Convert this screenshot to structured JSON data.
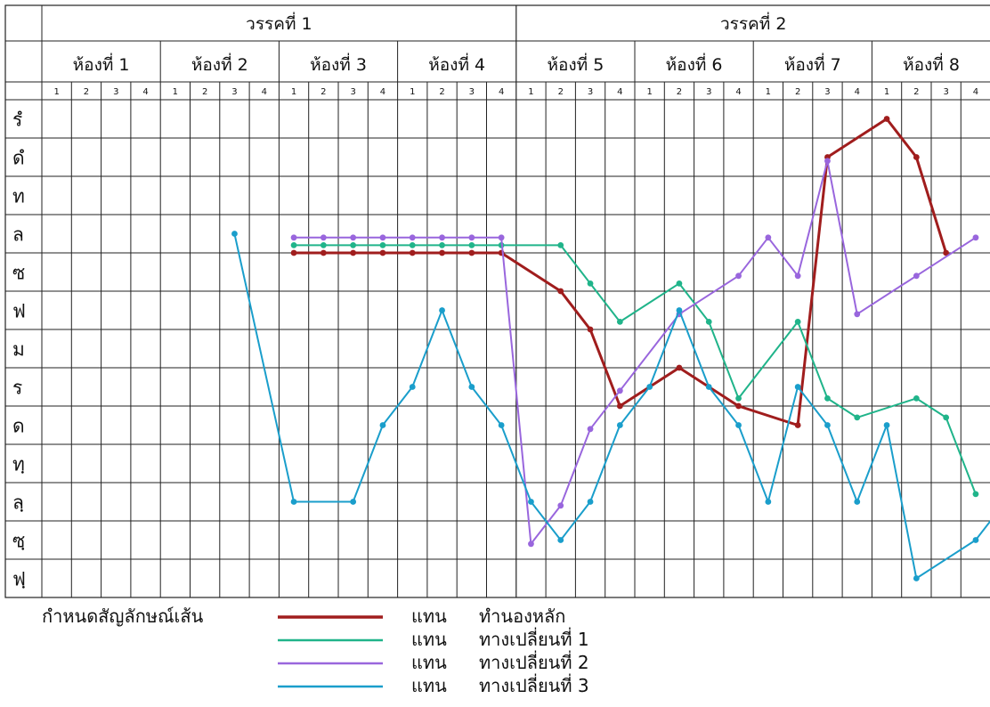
{
  "chart_data": {
    "type": "line",
    "title": "",
    "sections": [
      {
        "label": "วรรคที่ 1"
      },
      {
        "label": "วรรคที่ 2"
      }
    ],
    "rooms": [
      "ห้องที่ 1",
      "ห้องที่ 2",
      "ห้องที่ 3",
      "ห้องที่ 4",
      "ห้องที่ 5",
      "ห้องที่ 6",
      "ห้องที่ 7",
      "ห้องที่ 8"
    ],
    "beats": [
      "1",
      "2",
      "3",
      "4",
      "1",
      "2",
      "3",
      "4",
      "1",
      "2",
      "3",
      "4",
      "1",
      "2",
      "3",
      "4",
      "1",
      "2",
      "3",
      "4",
      "1",
      "2",
      "3",
      "4",
      "1",
      "2",
      "3",
      "4",
      "1",
      "2",
      "3",
      "4"
    ],
    "pitch_levels": [
      "รํ",
      "ดํ",
      "ท",
      "ล",
      "ซ",
      "ฟ",
      "ม",
      "ร",
      "ด",
      "ทฺ",
      "ลฺ",
      "ซฺ",
      "ฟฺ"
    ],
    "series": [
      {
        "name": "ทำนองหลัก",
        "color": "#a01d1d",
        "width": 3,
        "points": [
          [
            9,
            3.5
          ],
          [
            10,
            3.5
          ],
          [
            11,
            3.5
          ],
          [
            12,
            3.5
          ],
          [
            13,
            3.5
          ],
          [
            14,
            3.5
          ],
          [
            15,
            3.5
          ],
          [
            16,
            3.5
          ],
          [
            18,
            4.5
          ],
          [
            19,
            5.5
          ],
          [
            20,
            7.5
          ],
          [
            22,
            6.5
          ],
          [
            24,
            7.5
          ],
          [
            26,
            8
          ],
          [
            27,
            1
          ],
          [
            29,
            0
          ],
          [
            30,
            1
          ],
          [
            31,
            3.5
          ]
        ]
      },
      {
        "name": "ทางเปลี่ยนที่ 1",
        "color": "#20b48a",
        "width": 2,
        "points": [
          [
            9,
            3.3
          ],
          [
            10,
            3.3
          ],
          [
            11,
            3.3
          ],
          [
            12,
            3.3
          ],
          [
            13,
            3.3
          ],
          [
            14,
            3.3
          ],
          [
            15,
            3.3
          ],
          [
            16,
            3.3
          ],
          [
            18,
            3.3
          ],
          [
            19,
            4.3
          ],
          [
            20,
            5.3
          ],
          [
            22,
            4.3
          ],
          [
            23,
            5.3
          ],
          [
            24,
            7.3
          ],
          [
            26,
            5.3
          ],
          [
            27,
            7.3
          ],
          [
            28,
            7.8
          ],
          [
            30,
            7.3
          ],
          [
            31,
            7.8
          ],
          [
            32,
            9.8
          ]
        ]
      },
      {
        "name": "ทางเปลี่ยนที่ 2",
        "color": "#9966dd",
        "width": 2,
        "points": [
          [
            9,
            3.1
          ],
          [
            10,
            3.1
          ],
          [
            11,
            3.1
          ],
          [
            12,
            3.1
          ],
          [
            13,
            3.1
          ],
          [
            14,
            3.1
          ],
          [
            15,
            3.1
          ],
          [
            16,
            3.1
          ],
          [
            17,
            11.1
          ],
          [
            18,
            10.1
          ],
          [
            19,
            8.1
          ],
          [
            20,
            7.1
          ],
          [
            22,
            5.1
          ],
          [
            24,
            4.1
          ],
          [
            25,
            3.1
          ],
          [
            26,
            4.1
          ],
          [
            27,
            1.1
          ],
          [
            28,
            5.1
          ],
          [
            30,
            4.1
          ],
          [
            32,
            3.1
          ]
        ]
      },
      {
        "name": "ทางเปลี่ยนที่ 3",
        "color": "#1a9ecb",
        "width": 2,
        "points": [
          [
            7,
            3
          ],
          [
            9,
            10
          ],
          [
            11,
            10
          ],
          [
            12,
            8
          ],
          [
            13,
            7
          ],
          [
            14,
            5
          ],
          [
            15,
            7
          ],
          [
            16,
            8
          ],
          [
            17,
            10
          ],
          [
            18,
            11
          ],
          [
            19,
            10
          ],
          [
            20,
            8
          ],
          [
            21,
            7
          ],
          [
            22,
            5
          ],
          [
            23,
            7
          ],
          [
            24,
            8
          ],
          [
            25,
            10
          ],
          [
            26,
            7
          ],
          [
            27,
            8
          ],
          [
            28,
            10
          ],
          [
            29,
            8
          ],
          [
            30,
            12
          ],
          [
            32,
            11
          ],
          [
            33,
            10
          ]
        ]
      }
    ],
    "legend_title": "กำหนดสัญลักษณ์เส้น",
    "legend_word": "แทน",
    "legend_entries": [
      "ทำนองหลัก",
      "ทางเปลี่ยนที่ 1",
      "ทางเปลี่ยนที่ 2",
      "ทางเปลี่ยนที่ 3"
    ]
  }
}
